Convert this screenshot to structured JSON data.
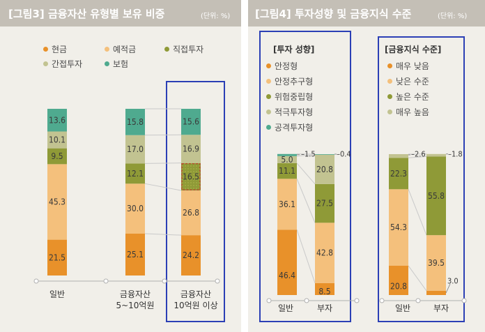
{
  "colors": {
    "cash": "#e8912a",
    "deposit": "#f4c07c",
    "direct": "#8f9a37",
    "indirect": "#c2c391",
    "insurance": "#4faa8f",
    "axis": "#b0b0b0",
    "highlight": "#2b3fb5"
  },
  "fig3": {
    "title": "[그림3] 금융자산 유형별 보유 비중",
    "unit": "(단위: %)",
    "legend": [
      {
        "label": "현금",
        "color": "#e8912a"
      },
      {
        "label": "예적금",
        "color": "#f4c07c"
      },
      {
        "label": "직접투자",
        "color": "#8f9a37"
      },
      {
        "label": "간접투자",
        "color": "#c2c391"
      },
      {
        "label": "보험",
        "color": "#4faa8f"
      }
    ],
    "categories": [
      {
        "label1": "일반",
        "label2": ""
      },
      {
        "label1": "금융자산",
        "label2": "5~10억원"
      },
      {
        "label1": "금융자산",
        "label2": "10억원 이상"
      }
    ]
  },
  "fig4": {
    "title": "[그림4] 투자성향 및 금융지식 수준",
    "unit": "(단위: %)",
    "groups": [
      {
        "heading": "[투자 성향]",
        "legend": [
          {
            "label": "안정형",
            "color": "#e8912a"
          },
          {
            "label": "안정추구형",
            "color": "#f4c07c"
          },
          {
            "label": "위험중립형",
            "color": "#8f9a37"
          },
          {
            "label": "적극투자형",
            "color": "#c2c391"
          },
          {
            "label": "공격투자형",
            "color": "#4faa8f"
          }
        ],
        "categories": [
          "일반",
          "부자"
        ]
      },
      {
        "heading": "[금융지식 수준]",
        "legend": [
          {
            "label": "매우 낮음",
            "color": "#e8912a"
          },
          {
            "label": "낮은 수준",
            "color": "#f4c07c"
          },
          {
            "label": "높은 수준",
            "color": "#8f9a37"
          },
          {
            "label": "매우 높음",
            "color": "#c2c391"
          }
        ],
        "categories": [
          "일반",
          "부자"
        ]
      }
    ]
  },
  "chart_data": [
    {
      "type": "bar",
      "stacked": true,
      "title": "[그림3] 금융자산 유형별 보유 비중",
      "unit": "%",
      "categories": [
        "일반",
        "금융자산 5~10억원",
        "금융자산 10억원 이상"
      ],
      "series": [
        {
          "name": "현금",
          "values": [
            21.5,
            25.1,
            24.2
          ]
        },
        {
          "name": "예적금",
          "values": [
            45.3,
            30.0,
            26.8
          ]
        },
        {
          "name": "직접투자",
          "values": [
            9.5,
            12.1,
            16.5
          ]
        },
        {
          "name": "간접투자",
          "values": [
            10.1,
            17.0,
            16.9
          ]
        },
        {
          "name": "보험",
          "values": [
            13.6,
            15.8,
            15.6
          ]
        }
      ],
      "labels": [
        [
          "21.5",
          "45.3",
          "9.5",
          "10.1",
          "13.6"
        ],
        [
          "25.1",
          "30.0",
          "12.1",
          "17.0",
          "15.8"
        ],
        [
          "24.2",
          "26.8",
          "16.5",
          "16.9",
          "15.6"
        ]
      ],
      "ylim": [
        0,
        100
      ]
    },
    {
      "type": "bar",
      "stacked": true,
      "title": "[투자 성향]",
      "unit": "%",
      "categories": [
        "일반",
        "부자"
      ],
      "series": [
        {
          "name": "안정형",
          "values": [
            46.4,
            8.5
          ]
        },
        {
          "name": "안정추구형",
          "values": [
            36.1,
            42.8
          ]
        },
        {
          "name": "위험중립형",
          "values": [
            11.1,
            27.5
          ]
        },
        {
          "name": "적극투자형",
          "values": [
            5.0,
            20.8
          ]
        },
        {
          "name": "공격투자형",
          "values": [
            1.5,
            0.4
          ]
        }
      ],
      "labels": [
        [
          "46.4",
          "36.1",
          "11.1",
          "5.0",
          "1.5"
        ],
        [
          "8.5",
          "42.8",
          "27.5",
          "20.8",
          "0.4"
        ]
      ],
      "ylim": [
        0,
        100
      ]
    },
    {
      "type": "bar",
      "stacked": true,
      "title": "[금융지식 수준]",
      "unit": "%",
      "categories": [
        "일반",
        "부자"
      ],
      "series": [
        {
          "name": "매우 낮음",
          "values": [
            20.8,
            3.0
          ]
        },
        {
          "name": "낮은 수준",
          "values": [
            54.3,
            39.5
          ]
        },
        {
          "name": "높은 수준",
          "values": [
            22.3,
            55.8
          ]
        },
        {
          "name": "매우 높음",
          "values": [
            2.6,
            1.8
          ]
        }
      ],
      "labels": [
        [
          "20.8",
          "54.3",
          "22.3",
          "2.6"
        ],
        [
          "3.0",
          "39.5",
          "55.8",
          "1.8"
        ]
      ],
      "ylim": [
        0,
        100
      ]
    }
  ]
}
